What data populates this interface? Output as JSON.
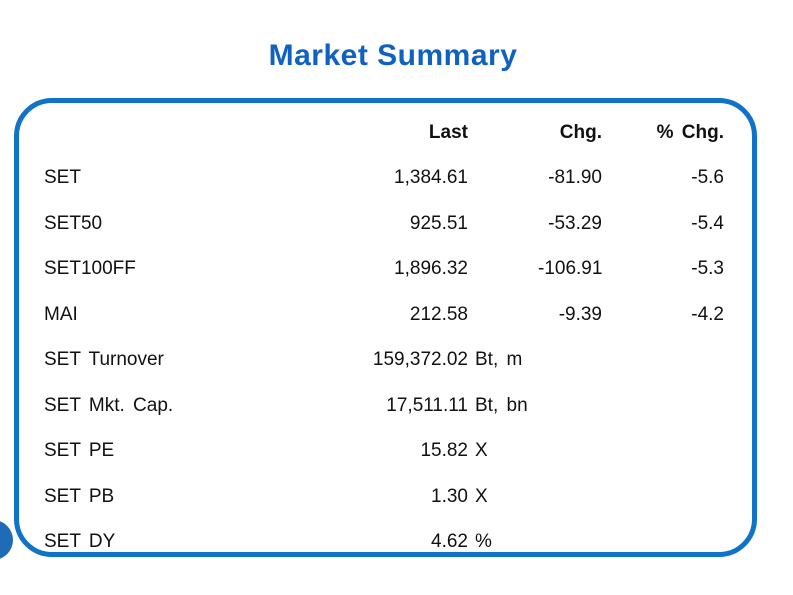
{
  "slide": {
    "title": "Market Summary"
  },
  "table": {
    "headers": {
      "last": "Last",
      "chg": "Chg.",
      "pct_chg": "% Chg."
    },
    "rows": [
      {
        "label": "SET",
        "last": "1,384.61",
        "unit": "",
        "chg": "-81.90",
        "pct_chg": "-5.6"
      },
      {
        "label": "SET50",
        "last": "925.51",
        "unit": "",
        "chg": "-53.29",
        "pct_chg": "-5.4"
      },
      {
        "label": "SET100FF",
        "last": "1,896.32",
        "unit": "",
        "chg": "-106.91",
        "pct_chg": "-5.3"
      },
      {
        "label": "MAI",
        "last": "212.58",
        "unit": "",
        "chg": "-9.39",
        "pct_chg": "-4.2"
      },
      {
        "label": "SET Turnover",
        "last": "159,372.02",
        "unit": "Bt, m",
        "chg": "",
        "pct_chg": ""
      },
      {
        "label": "SET Mkt. Cap.",
        "last": "17,511.11",
        "unit": "Bt, bn",
        "chg": "",
        "pct_chg": ""
      },
      {
        "label": "SET PE",
        "last": "15.82",
        "unit": "X",
        "chg": "",
        "pct_chg": ""
      },
      {
        "label": "SET PB",
        "last": "1.30",
        "unit": "X",
        "chg": "",
        "pct_chg": ""
      },
      {
        "label": "SET DY",
        "last": "4.62",
        "unit": "%",
        "chg": "",
        "pct_chg": ""
      }
    ]
  },
  "colors": {
    "title_blue": "#1062c0",
    "box_border_blue": "#1173c7",
    "corner_circle_blue": "#1e6cb5",
    "text": "#111111",
    "background": "#ffffff"
  },
  "decor": {
    "corner_shape": "blue-circle-clipped-left-edge"
  }
}
